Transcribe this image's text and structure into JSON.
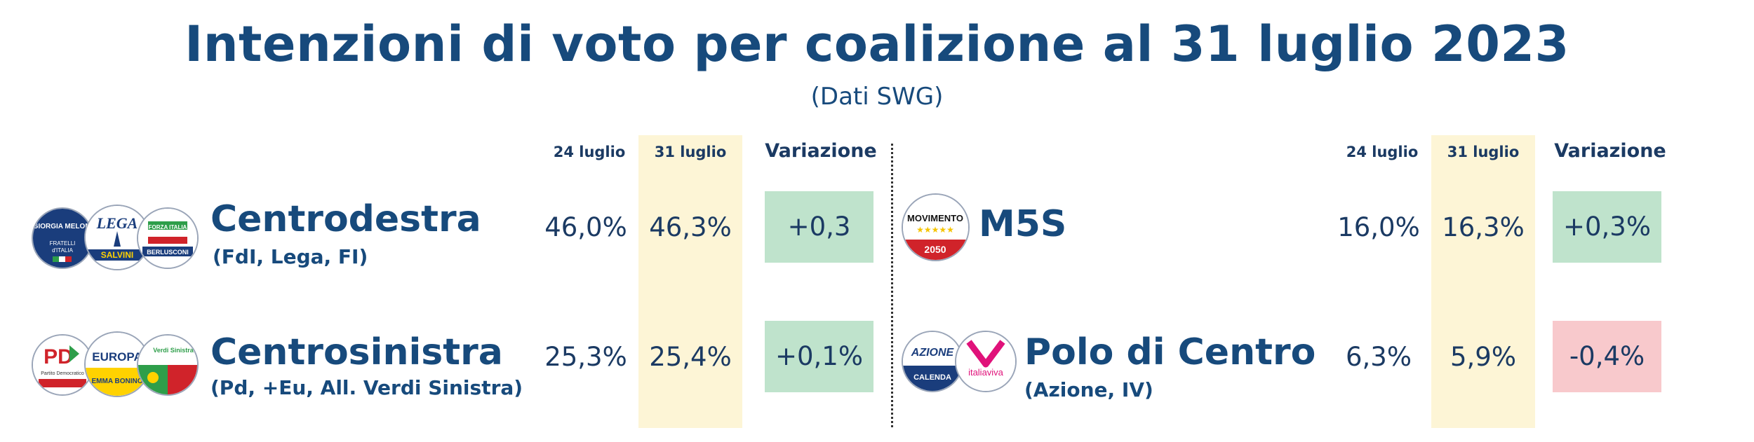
{
  "title": "Intenzioni di voto per coalizione al 31 luglio 2023",
  "subtitle": "(Dati SWG)",
  "headers": {
    "prev": "24 luglio",
    "curr": "31 luglio",
    "change": "Variazione"
  },
  "colors": {
    "highlight": "#fdf5d6",
    "increase": "#bfe3cc",
    "decrease": "#f8c9cc",
    "text": "#174a7c"
  },
  "logos": {
    "fdi": "GIORGIA MELONI",
    "lega": "LEGA",
    "salvini": "SALVINI",
    "fi": "FORZA ITALIA",
    "berlusconi": "BERLUSCONI",
    "pd": "PD",
    "europa": "EUROPA",
    "bonino": "EMMA BONINO",
    "avs": "Verdi Sinistra",
    "m5s": "MOVIMENTO",
    "m5s_year": "2050",
    "azione": "AZIONE",
    "calenda": "CALENDA",
    "iv": "italiaviva"
  },
  "chart_data": {
    "type": "table",
    "title": "Intenzioni di voto per coalizione al 31 luglio 2023",
    "subtitle": "(Dati SWG)",
    "columns": [
      "24 luglio",
      "31 luglio",
      "Variazione"
    ],
    "rows": [
      {
        "name": "Centrodestra",
        "detail": "(FdI, Lega, FI)",
        "prev": "46,0%",
        "curr": "46,3%",
        "change": "+0,3",
        "direction": "up",
        "prev_value": 46.0,
        "curr_value": 46.3,
        "change_value": 0.3
      },
      {
        "name": "Centrosinistra",
        "detail": "(Pd, +Eu, All. Verdi Sinistra)",
        "prev": "25,3%",
        "curr": "25,4%",
        "change": "+0,1%",
        "direction": "up",
        "prev_value": 25.3,
        "curr_value": 25.4,
        "change_value": 0.1
      },
      {
        "name": "M5S",
        "detail": "",
        "prev": "16,0%",
        "curr": "16,3%",
        "change": "+0,3%",
        "direction": "up",
        "prev_value": 16.0,
        "curr_value": 16.3,
        "change_value": 0.3
      },
      {
        "name": "Polo di Centro",
        "detail": "(Azione, IV)",
        "prev": "6,3%",
        "curr": "5,9%",
        "change": "-0,4%",
        "direction": "down",
        "prev_value": 6.3,
        "curr_value": 5.9,
        "change_value": -0.4
      }
    ]
  }
}
